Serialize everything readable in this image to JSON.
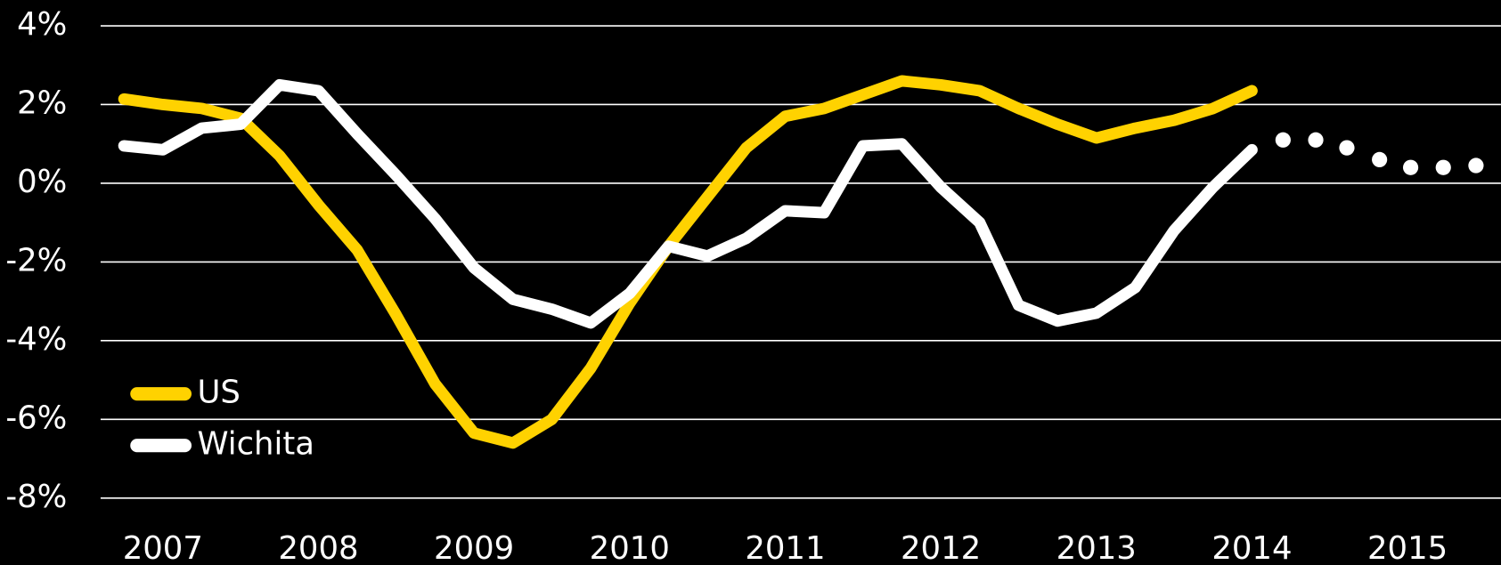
{
  "chart_data": {
    "type": "line",
    "x": [
      2006.75,
      2007,
      2007.25,
      2007.5,
      2007.75,
      2008,
      2008.25,
      2008.5,
      2008.75,
      2009,
      2009.25,
      2009.5,
      2009.75,
      2010,
      2010.25,
      2010.5,
      2010.75,
      2011,
      2011.25,
      2011.5,
      2011.75,
      2012,
      2012.25,
      2012.5,
      2012.75,
      2013,
      2013.25,
      2013.5,
      2013.75,
      2014
    ],
    "series": [
      {
        "name": "US",
        "color": "#FFD200",
        "values": [
          2.14,
          2.0,
          1.9,
          1.65,
          0.7,
          -0.55,
          -1.7,
          -3.35,
          -5.1,
          -6.35,
          -6.6,
          -6.0,
          -4.7,
          -3.05,
          -1.6,
          -0.35,
          0.9,
          1.7,
          1.9,
          2.25,
          2.6,
          2.5,
          2.35,
          1.9,
          1.5,
          1.15,
          1.4,
          1.6,
          1.9,
          2.35
        ]
      },
      {
        "name": "Wichita",
        "color": "#FFFFFF",
        "values": [
          0.95,
          0.85,
          1.4,
          1.5,
          2.5,
          2.35,
          1.25,
          0.2,
          -0.9,
          -2.15,
          -2.95,
          -3.2,
          -3.55,
          -2.8,
          -1.6,
          -1.85,
          -1.4,
          -0.7,
          -0.75,
          0.95,
          1.0,
          -0.1,
          -1.0,
          -3.1,
          -3.5,
          -3.3,
          -2.65,
          -1.2,
          -0.1,
          0.85
        ],
        "forecast": {
          "x": [
            2014.2,
            2014.41,
            2014.61,
            2014.82,
            2015.02,
            2015.23,
            2015.44
          ],
          "values": [
            1.1,
            1.1,
            0.9,
            0.6,
            0.4,
            0.4,
            0.45
          ]
        }
      }
    ],
    "xlim": [
      2006.6,
      2015.6
    ],
    "xticks": [
      2007,
      2008,
      2009,
      2010,
      2011,
      2012,
      2013,
      2014,
      2015
    ],
    "ylim": [
      -8,
      4
    ],
    "yticks": [
      {
        "value": 4,
        "label": "4%"
      },
      {
        "value": 2,
        "label": "2%"
      },
      {
        "value": 0,
        "label": "0%"
      },
      {
        "value": -2,
        "label": "-2%"
      },
      {
        "value": -4,
        "label": "-4%"
      },
      {
        "value": -6,
        "label": "-6%"
      },
      {
        "value": -8,
        "label": "-8%"
      }
    ],
    "grid": true,
    "legend": "lower left"
  }
}
